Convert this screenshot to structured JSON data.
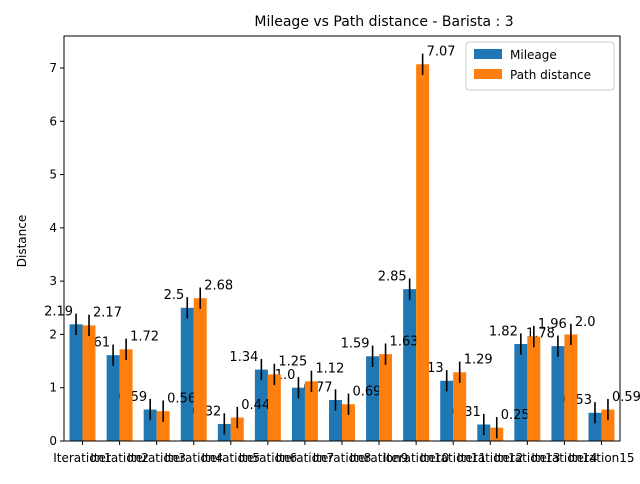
{
  "chart_data": {
    "type": "bar",
    "title": "Mileage vs Path distance - Barista : 3",
    "xlabel": "",
    "ylabel": "Distance",
    "ylim": [
      0,
      7.6
    ],
    "yticks": [
      0,
      1,
      2,
      3,
      4,
      5,
      6,
      7
    ],
    "categories": [
      "Iteration1",
      "Iteration2",
      "Iteration3",
      "Iteration4",
      "Iteration5",
      "Iteration6",
      "Iteration7",
      "Iteration8",
      "Iteration9",
      "Iteration10",
      "Iteration11",
      "Iteration12",
      "Iteration13",
      "Iteration14",
      "Iteration15"
    ],
    "series": [
      {
        "name": "Mileage",
        "color": "#1f77b4",
        "values": [
          2.19,
          1.61,
          0.59,
          2.5,
          0.32,
          1.34,
          1.0,
          0.77,
          1.59,
          2.85,
          1.13,
          0.31,
          1.82,
          1.78,
          0.53
        ],
        "labels": [
          "2.19",
          "1.61",
          "0.59",
          "2.5",
          "0.32",
          "1.34",
          "1.0",
          "0.77",
          "1.59",
          "2.85",
          "1.13",
          "0.31",
          "1.82",
          "1.78",
          "0.53"
        ],
        "errors": [
          0.2,
          0.2,
          0.2,
          0.2,
          0.2,
          0.2,
          0.2,
          0.2,
          0.2,
          0.2,
          0.2,
          0.2,
          0.2,
          0.2,
          0.2
        ]
      },
      {
        "name": "Path distance",
        "color": "#ff7f0e",
        "values": [
          2.17,
          1.72,
          0.56,
          2.68,
          0.44,
          1.25,
          1.12,
          0.69,
          1.63,
          7.07,
          1.29,
          0.25,
          1.96,
          2.0,
          0.59
        ],
        "labels": [
          "2.17",
          "1.72",
          "0.56",
          "2.68",
          "0.44",
          "1.25",
          "1.12",
          "0.69",
          "1.63",
          "7.07",
          "1.29",
          "0.25",
          "1.96",
          "2.0",
          "0.59"
        ],
        "errors": [
          0.2,
          0.2,
          0.2,
          0.2,
          0.2,
          0.2,
          0.2,
          0.2,
          0.2,
          0.2,
          0.2,
          0.2,
          0.2,
          0.2,
          0.2
        ]
      }
    ],
    "legend_position": "top-right",
    "grid": false
  }
}
